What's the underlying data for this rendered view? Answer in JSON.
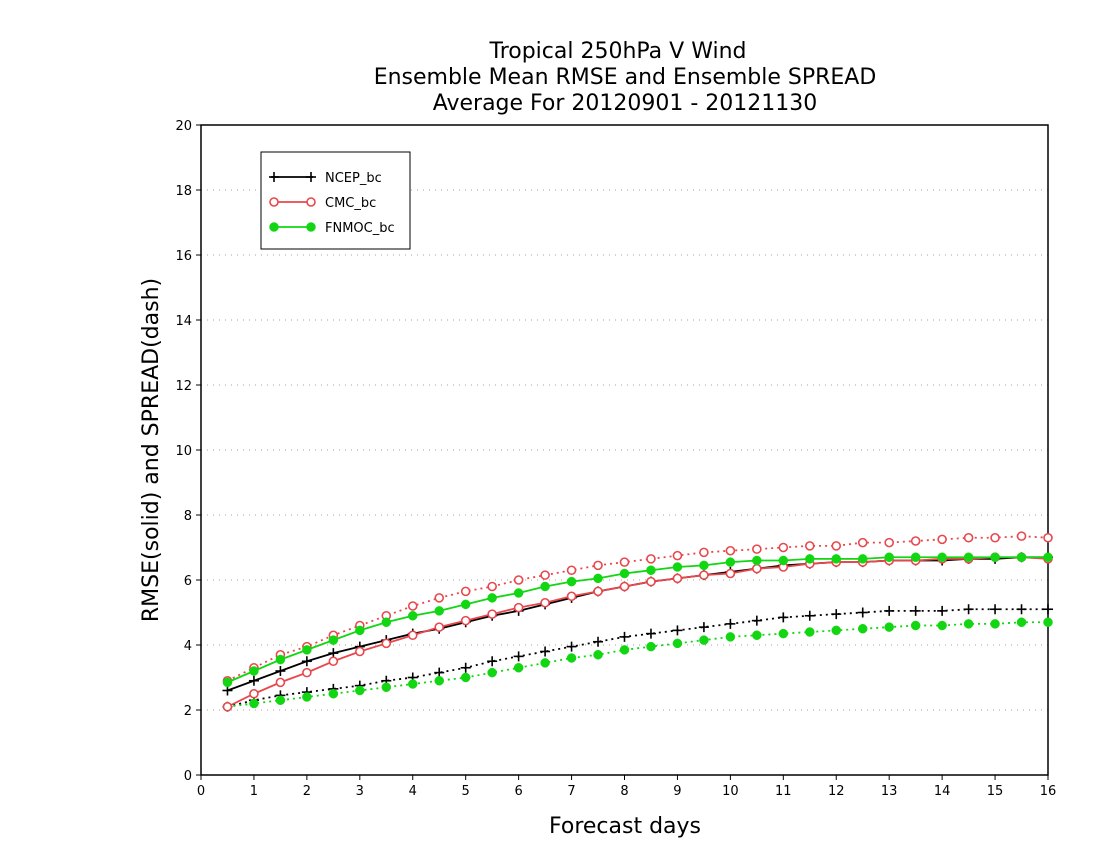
{
  "chart_data": {
    "type": "line",
    "title_lines": [
      "Tropical 250hPa V Wind",
      "Ensemble Mean RMSE and Ensemble SPREAD",
      "Average For 20120901 - 20121130"
    ],
    "xlabel": "Forecast days",
    "ylabel": "RMSE(solid) and SPREAD(dash)",
    "xlim": [
      0,
      16
    ],
    "ylim": [
      0,
      20
    ],
    "xticks": [
      "0",
      "1",
      "2",
      "3",
      "4",
      "5",
      "6",
      "7",
      "8",
      "9",
      "10",
      "11",
      "12",
      "13",
      "14",
      "15",
      "16"
    ],
    "yticks": [
      "0",
      "2",
      "4",
      "6",
      "8",
      "10",
      "12",
      "14",
      "16",
      "18",
      "20"
    ],
    "grid": true,
    "legend_position": "top-left",
    "x": [
      0.5,
      1,
      1.5,
      2,
      2.5,
      3,
      3.5,
      4,
      4.5,
      5,
      5.5,
      6,
      6.5,
      7,
      7.5,
      8,
      8.5,
      9,
      9.5,
      10,
      10.5,
      11,
      11.5,
      12,
      12.5,
      13,
      13.5,
      14,
      14.5,
      15,
      15.5,
      16
    ],
    "series": [
      {
        "name": "NCEP_bc",
        "color": "#000000",
        "marker": "plus",
        "rmse": [
          2.6,
          2.9,
          3.2,
          3.5,
          3.75,
          3.95,
          4.15,
          4.35,
          4.5,
          4.7,
          4.9,
          5.05,
          5.25,
          5.45,
          5.65,
          5.8,
          5.95,
          6.05,
          6.15,
          6.25,
          6.35,
          6.45,
          6.5,
          6.55,
          6.55,
          6.6,
          6.6,
          6.6,
          6.65,
          6.65,
          6.7,
          6.7
        ],
        "spread": [
          2.1,
          2.3,
          2.45,
          2.55,
          2.65,
          2.75,
          2.9,
          3.0,
          3.15,
          3.3,
          3.5,
          3.65,
          3.8,
          3.95,
          4.1,
          4.25,
          4.35,
          4.45,
          4.55,
          4.65,
          4.75,
          4.85,
          4.9,
          4.95,
          5.0,
          5.05,
          5.05,
          5.05,
          5.1,
          5.1,
          5.1,
          5.1
        ]
      },
      {
        "name": "CMC_bc",
        "color": "#e8474c",
        "marker": "circle-open",
        "rmse": [
          2.1,
          2.5,
          2.85,
          3.15,
          3.5,
          3.8,
          4.05,
          4.3,
          4.55,
          4.75,
          4.95,
          5.15,
          5.3,
          5.5,
          5.65,
          5.8,
          5.95,
          6.05,
          6.15,
          6.2,
          6.35,
          6.4,
          6.5,
          6.55,
          6.55,
          6.6,
          6.6,
          6.65,
          6.65,
          6.7,
          6.7,
          6.65
        ],
        "spread": [
          2.9,
          3.3,
          3.7,
          3.95,
          4.3,
          4.6,
          4.9,
          5.2,
          5.45,
          5.65,
          5.8,
          6.0,
          6.15,
          6.3,
          6.45,
          6.55,
          6.65,
          6.75,
          6.85,
          6.9,
          6.95,
          7.0,
          7.05,
          7.05,
          7.15,
          7.15,
          7.2,
          7.25,
          7.3,
          7.3,
          7.35,
          7.3
        ]
      },
      {
        "name": "FNMOC_bc",
        "color": "#11d611",
        "marker": "circle-filled",
        "rmse": [
          2.85,
          3.2,
          3.55,
          3.85,
          4.15,
          4.45,
          4.7,
          4.9,
          5.05,
          5.25,
          5.45,
          5.6,
          5.8,
          5.95,
          6.05,
          6.2,
          6.3,
          6.4,
          6.45,
          6.55,
          6.6,
          6.6,
          6.65,
          6.65,
          6.65,
          6.7,
          6.7,
          6.7,
          6.7,
          6.7,
          6.7,
          6.7
        ],
        "spread": [
          2.1,
          2.2,
          2.3,
          2.4,
          2.5,
          2.6,
          2.7,
          2.8,
          2.9,
          3.0,
          3.15,
          3.3,
          3.45,
          3.6,
          3.7,
          3.85,
          3.95,
          4.05,
          4.15,
          4.25,
          4.3,
          4.35,
          4.4,
          4.45,
          4.5,
          4.55,
          4.6,
          4.6,
          4.65,
          4.65,
          4.7,
          4.7
        ]
      }
    ]
  }
}
